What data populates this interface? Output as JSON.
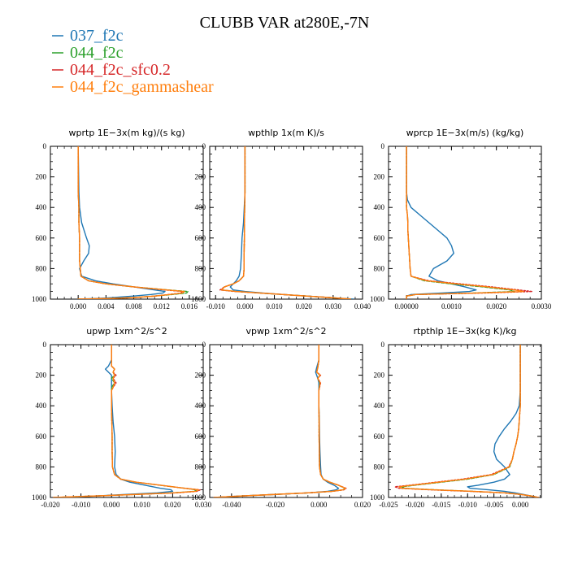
{
  "title": "CLUBB VAR at280E,-7N",
  "legend": [
    {
      "name": "037_f2c",
      "color": "#1f77b4"
    },
    {
      "name": "044_f2c",
      "color": "#2ca02c"
    },
    {
      "name": "044_f2c_sfc0.2",
      "color": "#d62728"
    },
    {
      "name": "044_f2c_gammashear",
      "color": "#ff7f0e"
    }
  ],
  "chart_data": [
    {
      "type": "line",
      "title": "wprtp  1E−3x(m kg)/(s kg)",
      "xlim": [
        -0.004,
        0.018
      ],
      "ylim": [
        1000,
        0
      ],
      "xticks": [
        0.0,
        0.004,
        0.008,
        0.012,
        0.016
      ],
      "xtick_labels": [
        "0.000",
        "0.004",
        "0.008",
        "0.012",
        "0.016"
      ],
      "yticks": [
        0,
        200,
        400,
        600,
        800,
        1000
      ],
      "y": [
        0,
        300,
        400,
        500,
        600,
        650,
        700,
        750,
        800,
        850,
        880,
        900,
        920,
        940,
        950,
        960,
        970,
        980,
        990,
        995,
        1000
      ],
      "series": [
        {
          "name": "037_f2c",
          "values": [
            0,
            0.0001,
            0.0002,
            0.0005,
            0.0012,
            0.0016,
            0.0015,
            0.0008,
            0.0002,
            0.0005,
            0.0025,
            0.005,
            0.008,
            0.011,
            0.0125,
            0.0122,
            0.0105,
            0.008,
            0.005,
            0.003,
            0.0
          ]
        },
        {
          "name": "044_f2c",
          "values": [
            0,
            0,
            0.0001,
            0.0001,
            0.0002,
            0.0002,
            0.0002,
            0.0002,
            0.0003,
            0.0004,
            0.0015,
            0.004,
            0.008,
            0.013,
            0.0158,
            0.0156,
            0.0135,
            0.011,
            0.008,
            0.005,
            0.0
          ]
        },
        {
          "name": "044_f2c_sfc0.2",
          "values": [
            0,
            0,
            0.0001,
            0.0001,
            0.0002,
            0.0002,
            0.0002,
            0.0002,
            0.0003,
            0.0004,
            0.0015,
            0.004,
            0.008,
            0.0125,
            0.015,
            0.0148,
            0.013,
            0.011,
            0.008,
            0.005,
            0.0
          ]
        },
        {
          "name": "044_f2c_gammashear",
          "values": [
            0,
            0,
            0.0001,
            0.0001,
            0.0002,
            0.0002,
            0.0002,
            0.0002,
            0.0003,
            0.0004,
            0.0015,
            0.004,
            0.008,
            0.0128,
            0.0153,
            0.015,
            0.0132,
            0.011,
            0.008,
            0.005,
            0.0
          ]
        }
      ]
    },
    {
      "type": "line",
      "title": "wpthlp  1x(m K)/s",
      "xlim": [
        -0.012,
        0.04
      ],
      "ylim": [
        1000,
        0
      ],
      "xticks": [
        -0.01,
        0.0,
        0.01,
        0.02,
        0.03,
        0.04
      ],
      "xtick_labels": [
        "-0.010",
        "0.000",
        "0.010",
        "0.020",
        "0.030",
        "0.040"
      ],
      "yticks": [
        0,
        200,
        400,
        600,
        800,
        1000
      ],
      "y": [
        0,
        300,
        500,
        600,
        700,
        800,
        850,
        880,
        900,
        920,
        940,
        950,
        960,
        970,
        980,
        990,
        1000
      ],
      "series": [
        {
          "name": "037_f2c",
          "values": [
            0,
            0,
            -0.0005,
            -0.001,
            -0.0012,
            -0.0015,
            -0.002,
            -0.003,
            -0.004,
            -0.005,
            -0.004,
            0.0,
            0.006,
            0.013,
            0.021,
            0.029,
            0.037
          ]
        },
        {
          "name": "044_f2c",
          "values": [
            0,
            0,
            -0.0002,
            -0.0002,
            -0.0003,
            -0.0003,
            -0.0005,
            -0.002,
            -0.004,
            -0.007,
            -0.008,
            -0.003,
            0.005,
            0.013,
            0.021,
            0.029,
            0.036
          ]
        },
        {
          "name": "044_f2c_sfc0.2",
          "values": [
            0,
            0,
            -0.0002,
            -0.0002,
            -0.0003,
            -0.0003,
            -0.0005,
            -0.002,
            -0.004,
            -0.007,
            -0.0085,
            -0.0035,
            0.005,
            0.013,
            0.021,
            0.029,
            0.036
          ]
        },
        {
          "name": "044_f2c_gammashear",
          "values": [
            0,
            0,
            -0.0002,
            -0.0002,
            -0.0003,
            -0.0003,
            -0.0005,
            -0.002,
            -0.004,
            -0.007,
            -0.008,
            -0.003,
            0.005,
            0.013,
            0.021,
            0.029,
            0.036
          ]
        }
      ]
    },
    {
      "type": "line",
      "title": "wprcp  1E−3x(m/s) (kg/kg)",
      "xlim": [
        -0.0004,
        0.003
      ],
      "ylim": [
        1000,
        0
      ],
      "xticks": [
        0.0,
        0.001,
        0.002,
        0.003
      ],
      "xtick_labels": [
        "0.00000",
        "0.0010",
        "0.0020",
        "0.0030"
      ],
      "yticks": [
        0,
        200,
        400,
        600,
        800,
        1000
      ],
      "y": [
        0,
        300,
        350,
        400,
        450,
        500,
        550,
        600,
        650,
        700,
        750,
        800,
        850,
        880,
        900,
        920,
        940,
        950,
        960,
        970,
        980,
        1000
      ],
      "series": [
        {
          "name": "037_f2c",
          "values": [
            0,
            0,
            2e-05,
            0.0001,
            0.0003,
            0.0005,
            0.0007,
            0.0009,
            0.001,
            0.00105,
            0.0009,
            0.0006,
            0.0005,
            0.0007,
            0.001,
            0.0013,
            0.00155,
            0.0014,
            0.0008,
            0.0001,
            0,
            0
          ]
        },
        {
          "name": "044_f2c",
          "values": [
            0,
            0,
            0,
            0,
            2e-05,
            3e-05,
            3e-05,
            4e-05,
            5e-05,
            6e-05,
            7e-05,
            8e-05,
            0.0001,
            0.0004,
            0.001,
            0.0017,
            0.0023,
            0.0024,
            0.0015,
            0.0002,
            0,
            0
          ]
        },
        {
          "name": "044_f2c_sfc0.2",
          "values": [
            0,
            0,
            0,
            0,
            2e-05,
            3e-05,
            3e-05,
            4e-05,
            5e-05,
            6e-05,
            7e-05,
            8e-05,
            0.0001,
            0.0005,
            0.0012,
            0.0019,
            0.0025,
            0.0028,
            0.0017,
            0.0002,
            0,
            0
          ]
        },
        {
          "name": "044_f2c_gammashear",
          "values": [
            0,
            0,
            0,
            0,
            2e-05,
            3e-05,
            3e-05,
            4e-05,
            5e-05,
            6e-05,
            7e-05,
            8e-05,
            0.0001,
            0.00045,
            0.0011,
            0.0018,
            0.0024,
            0.0026,
            0.0016,
            0.0002,
            0,
            0
          ]
        }
      ]
    },
    {
      "type": "line",
      "title": "upwp  1xm^2/s^2",
      "xlim": [
        -0.02,
        0.03
      ],
      "ylim": [
        1000,
        0
      ],
      "xticks": [
        -0.02,
        -0.01,
        0.0,
        0.01,
        0.02,
        0.03
      ],
      "xtick_labels": [
        "-0.020",
        "-0.010",
        "0.000",
        "0.010",
        "0.020",
        "0.030"
      ],
      "yticks": [
        0,
        200,
        400,
        600,
        800,
        1000
      ],
      "y": [
        0,
        100,
        140,
        160,
        180,
        200,
        220,
        250,
        280,
        300,
        400,
        500,
        600,
        700,
        800,
        850,
        880,
        900,
        920,
        940,
        950,
        960,
        970,
        980,
        990,
        1000
      ],
      "series": [
        {
          "name": "037_f2c",
          "values": [
            0,
            0,
            -0.001,
            -0.002,
            -0.001,
            0,
            0,
            0,
            0,
            0,
            0.0002,
            0.0005,
            0.001,
            0.0012,
            0.001,
            0.0015,
            0.003,
            0.006,
            0.011,
            0.016,
            0.0195,
            0.02,
            0.015,
            0.005,
            -0.005,
            -0.015
          ]
        },
        {
          "name": "044_f2c",
          "values": [
            0,
            0,
            0,
            0.001,
            0.0005,
            0.001,
            0,
            0.001,
            0,
            0,
            0,
            0.0001,
            0.0002,
            0.0002,
            0.0003,
            0.001,
            0.003,
            0.008,
            0.016,
            0.024,
            0.028,
            0.027,
            0.02,
            0.008,
            -0.005,
            -0.019
          ]
        },
        {
          "name": "044_f2c_sfc0.2",
          "values": [
            0,
            0,
            0,
            0.001,
            0.0005,
            0.0015,
            0.0005,
            0.0015,
            0.0005,
            0,
            0,
            0.0001,
            0.0002,
            0.0002,
            0.0003,
            0.001,
            0.003,
            0.008,
            0.016,
            0.024,
            0.029,
            0.028,
            0.021,
            0.008,
            -0.005,
            -0.019
          ]
        },
        {
          "name": "044_f2c_gammashear",
          "values": [
            0,
            0,
            0,
            0.001,
            0.0005,
            0.001,
            0.0005,
            0.001,
            0.0005,
            0,
            0,
            0.0001,
            0.0002,
            0.0002,
            0.0003,
            0.001,
            0.003,
            0.008,
            0.016,
            0.024,
            0.0285,
            0.0275,
            0.0205,
            0.008,
            -0.005,
            -0.019
          ]
        }
      ]
    },
    {
      "type": "line",
      "title": "vpwp  1xm^2/s^2",
      "xlim": [
        -0.05,
        0.02
      ],
      "ylim": [
        1000,
        0
      ],
      "xticks": [
        -0.04,
        -0.02,
        0.0,
        0.02
      ],
      "xtick_labels": [
        "-0.040",
        "-0.020",
        "0.000",
        "0.020"
      ],
      "yticks": [
        0,
        200,
        400,
        600,
        800,
        1000
      ],
      "y": [
        0,
        100,
        150,
        180,
        200,
        220,
        250,
        300,
        400,
        500,
        600,
        700,
        800,
        850,
        880,
        900,
        920,
        940,
        950,
        960,
        970,
        980,
        990,
        1000
      ],
      "series": [
        {
          "name": "037_f2c",
          "values": [
            0,
            0,
            -0.001,
            -0.0015,
            -0.001,
            -0.0005,
            0,
            0,
            0,
            0.0002,
            0.0003,
            0.0005,
            0.0008,
            0.001,
            0.002,
            0.004,
            0.007,
            0.009,
            0.008,
            0.004,
            -0.005,
            -0.02,
            -0.035,
            -0.048
          ]
        },
        {
          "name": "044_f2c",
          "values": [
            0,
            0,
            -0.0005,
            -0.001,
            0.0005,
            -0.0005,
            0.0005,
            0,
            0,
            0.0001,
            0.0001,
            0.0002,
            0.0003,
            0.0008,
            0.002,
            0.005,
            0.009,
            0.012,
            0.011,
            0.006,
            -0.005,
            -0.02,
            -0.035,
            -0.048
          ]
        },
        {
          "name": "044_f2c_sfc0.2",
          "values": [
            0,
            0,
            -0.0005,
            -0.001,
            0.0008,
            -0.0005,
            0.0008,
            0,
            0,
            0.0001,
            0.0001,
            0.0002,
            0.0003,
            0.0008,
            0.002,
            0.005,
            0.009,
            0.0125,
            0.0115,
            0.006,
            -0.005,
            -0.02,
            -0.035,
            -0.048
          ]
        },
        {
          "name": "044_f2c_gammashear",
          "values": [
            0,
            0,
            -0.0005,
            -0.001,
            0.0006,
            -0.0005,
            0.0006,
            0,
            0,
            0.0001,
            0.0001,
            0.0002,
            0.0003,
            0.0008,
            0.002,
            0.005,
            0.009,
            0.0122,
            0.0112,
            0.006,
            -0.005,
            -0.02,
            -0.035,
            -0.048
          ]
        }
      ]
    },
    {
      "type": "line",
      "title": "rtpthlp  1E−3x(kg K)/kg",
      "xlim": [
        -0.025,
        0.004
      ],
      "ylim": [
        1000,
        0
      ],
      "xticks": [
        -0.025,
        -0.02,
        -0.015,
        -0.01,
        -0.005,
        0.0
      ],
      "xtick_labels": [
        "-0.025",
        "-0.020",
        "-0.015",
        "-0.010",
        "-0.005",
        "0.000"
      ],
      "yticks": [
        0,
        200,
        400,
        600,
        800,
        1000
      ],
      "y": [
        0,
        300,
        400,
        450,
        500,
        550,
        600,
        650,
        700,
        750,
        800,
        850,
        880,
        900,
        920,
        930,
        940,
        950,
        960,
        970,
        980,
        990,
        1000
      ],
      "series": [
        {
          "name": "037_f2c",
          "values": [
            0,
            0,
            -0.0002,
            -0.0008,
            -0.0018,
            -0.003,
            -0.004,
            -0.0048,
            -0.005,
            -0.0045,
            -0.003,
            -0.002,
            -0.003,
            -0.005,
            -0.008,
            -0.01,
            -0.0095,
            -0.006,
            -0.003,
            -0.001,
            0.0005,
            0.002,
            0.0035
          ]
        },
        {
          "name": "044_f2c",
          "values": [
            0,
            0,
            0,
            -0.0001,
            -0.0002,
            -0.0003,
            -0.0005,
            -0.0008,
            -0.0012,
            -0.0015,
            -0.002,
            -0.005,
            -0.01,
            -0.015,
            -0.02,
            -0.0225,
            -0.022,
            -0.016,
            -0.009,
            -0.003,
            0,
            0.002,
            0.0035
          ]
        },
        {
          "name": "044_f2c_sfc0.2",
          "values": [
            0,
            0,
            0,
            -0.0001,
            -0.0002,
            -0.0003,
            -0.0005,
            -0.0008,
            -0.0012,
            -0.0015,
            -0.0022,
            -0.0055,
            -0.011,
            -0.016,
            -0.021,
            -0.0238,
            -0.023,
            -0.017,
            -0.0095,
            -0.003,
            0,
            0.002,
            0.0035
          ]
        },
        {
          "name": "044_f2c_gammashear",
          "values": [
            0,
            0,
            0,
            -0.0001,
            -0.0002,
            -0.0003,
            -0.0005,
            -0.0008,
            -0.0012,
            -0.0015,
            -0.0021,
            -0.0052,
            -0.0105,
            -0.0155,
            -0.0205,
            -0.023,
            -0.0225,
            -0.0165,
            -0.009,
            -0.003,
            0,
            0.002,
            0.0035
          ]
        }
      ]
    }
  ]
}
